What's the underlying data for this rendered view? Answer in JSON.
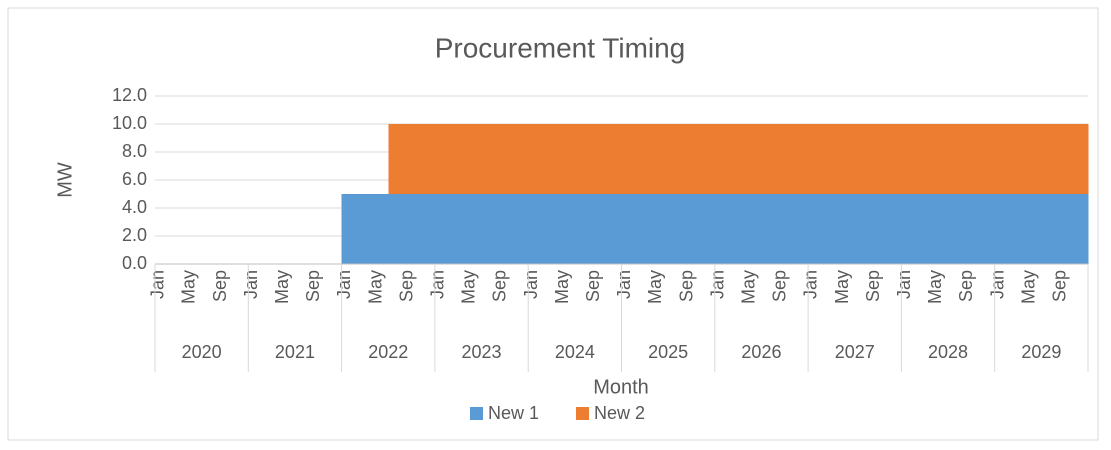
{
  "chart_data": {
    "type": "stacked_area",
    "title": "Procurement Timing",
    "y_axis_label": "MW",
    "x_axis_label": "Month",
    "years": [
      "2020",
      "2021",
      "2022",
      "2023",
      "2024",
      "2025",
      "2026",
      "2027",
      "2028",
      "2029"
    ],
    "categories": [
      "Jan",
      null,
      null,
      null,
      "May",
      null,
      null,
      null,
      "Sep",
      null,
      null,
      null,
      "Jan",
      null,
      null,
      null,
      "May",
      null,
      null,
      null,
      "Sep",
      null,
      null,
      null,
      "Jan",
      null,
      null,
      null,
      "May",
      null,
      null,
      null,
      "Sep",
      null,
      null,
      null,
      "Jan",
      null,
      null,
      null,
      "May",
      null,
      null,
      null,
      "Sep",
      null,
      null,
      null,
      "Jan",
      null,
      null,
      null,
      "May",
      null,
      null,
      null,
      "Sep",
      null,
      null,
      null,
      "Jan",
      null,
      null,
      null,
      "May",
      null,
      null,
      null,
      "Sep",
      null,
      null,
      null,
      "Jan",
      null,
      null,
      null,
      "May",
      null,
      null,
      null,
      "Sep",
      null,
      null,
      null,
      "Jan",
      null,
      null,
      null,
      "May",
      null,
      null,
      null,
      "Sep",
      null,
      null,
      null,
      "Jan",
      null,
      null,
      null,
      "May",
      null,
      null,
      null,
      "Sep",
      null,
      null,
      null,
      "Jan",
      null,
      null,
      null,
      "May",
      null,
      null,
      null,
      "Sep",
      null,
      null,
      null
    ],
    "series": [
      {
        "name": "New 1",
        "color": "#5b9bd5",
        "values": [
          0,
          0,
          0,
          0,
          0,
          0,
          0,
          0,
          0,
          0,
          0,
          0,
          0,
          0,
          0,
          0,
          0,
          0,
          0,
          0,
          0,
          0,
          0,
          0,
          5,
          5,
          5,
          5,
          5,
          5,
          5,
          5,
          5,
          5,
          5,
          5,
          5,
          5,
          5,
          5,
          5,
          5,
          5,
          5,
          5,
          5,
          5,
          5,
          5,
          5,
          5,
          5,
          5,
          5,
          5,
          5,
          5,
          5,
          5,
          5,
          5,
          5,
          5,
          5,
          5,
          5,
          5,
          5,
          5,
          5,
          5,
          5,
          5,
          5,
          5,
          5,
          5,
          5,
          5,
          5,
          5,
          5,
          5,
          5,
          5,
          5,
          5,
          5,
          5,
          5,
          5,
          5,
          5,
          5,
          5,
          5,
          5,
          5,
          5,
          5,
          5,
          5,
          5,
          5,
          5,
          5,
          5,
          5,
          5,
          5,
          5,
          5,
          5,
          5,
          5,
          5,
          5,
          5,
          5,
          5
        ]
      },
      {
        "name": "New 2",
        "color": "#ed7d31",
        "values": [
          0,
          0,
          0,
          0,
          0,
          0,
          0,
          0,
          0,
          0,
          0,
          0,
          0,
          0,
          0,
          0,
          0,
          0,
          0,
          0,
          0,
          0,
          0,
          0,
          0,
          0,
          0,
          0,
          0,
          0,
          5,
          5,
          5,
          5,
          5,
          5,
          5,
          5,
          5,
          5,
          5,
          5,
          5,
          5,
          5,
          5,
          5,
          5,
          5,
          5,
          5,
          5,
          5,
          5,
          5,
          5,
          5,
          5,
          5,
          5,
          5,
          5,
          5,
          5,
          5,
          5,
          5,
          5,
          5,
          5,
          5,
          5,
          5,
          5,
          5,
          5,
          5,
          5,
          5,
          5,
          5,
          5,
          5,
          5,
          5,
          5,
          5,
          5,
          5,
          5,
          5,
          5,
          5,
          5,
          5,
          5,
          5,
          5,
          5,
          5,
          5,
          5,
          5,
          5,
          5,
          5,
          5,
          5,
          5,
          5,
          5,
          5,
          5,
          5,
          5,
          5,
          5,
          5,
          5,
          5
        ]
      }
    ],
    "ylim": [
      0,
      12
    ],
    "yticks": [
      {
        "value": 0,
        "label": "0.0"
      },
      {
        "value": 2,
        "label": "2.0"
      },
      {
        "value": 4,
        "label": "4.0"
      },
      {
        "value": 6,
        "label": "6.0"
      },
      {
        "value": 8,
        "label": "8.0"
      },
      {
        "value": 10,
        "label": "10.0"
      },
      {
        "value": 12,
        "label": "12.0"
      }
    ],
    "grid": true,
    "legend": "bottom"
  }
}
